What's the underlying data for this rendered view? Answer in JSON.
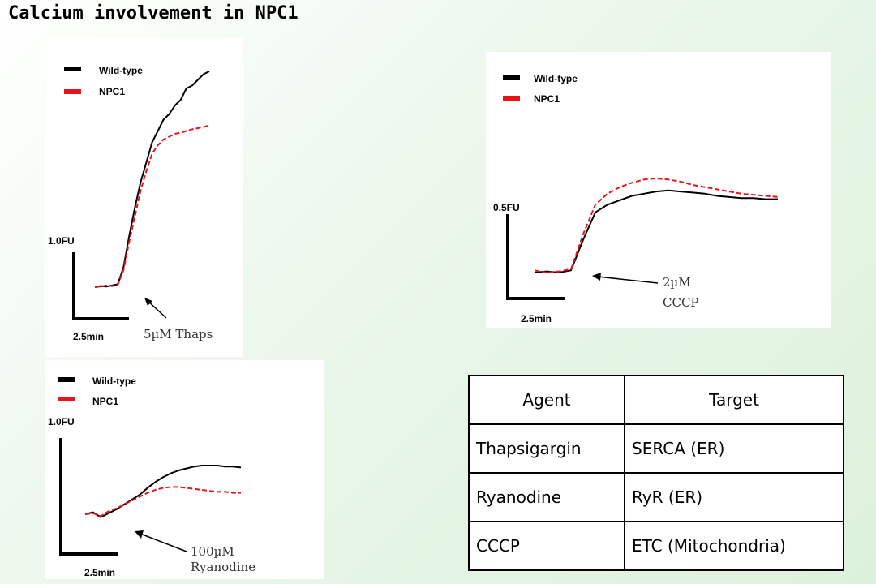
{
  "title": "Calcium involvement in NPC1",
  "colors": {
    "wild_type": "#000000",
    "npc1": "#e8141c"
  },
  "chart_data": [
    {
      "type": "line",
      "legend": {
        "position": "top-left",
        "entries": [
          "Wild-type",
          "NPC1"
        ]
      },
      "y_scale_bar": "1.0FU",
      "x_scale_bar": "2.5min",
      "annotation": [
        "5µM Thaps"
      ],
      "x": [
        0,
        1,
        2,
        3,
        4,
        5,
        6,
        7,
        8,
        9,
        10,
        11,
        12,
        13,
        14,
        15,
        16,
        17,
        18,
        19,
        20
      ],
      "series": [
        {
          "name": "Wild-type",
          "values": [
            0.0,
            0.02,
            0.01,
            0.03,
            0.05,
            0.35,
            0.9,
            1.4,
            1.85,
            2.2,
            2.55,
            2.75,
            2.95,
            3.05,
            3.2,
            3.3,
            3.5,
            3.55,
            3.65,
            3.75,
            3.8
          ]
        },
        {
          "name": "NPC1",
          "values": [
            0.0,
            0.01,
            0.03,
            0.02,
            0.04,
            0.3,
            0.8,
            1.25,
            1.7,
            2.05,
            2.35,
            2.5,
            2.6,
            2.65,
            2.7,
            2.72,
            2.75,
            2.78,
            2.8,
            2.82,
            2.85
          ]
        }
      ]
    },
    {
      "type": "line",
      "legend": {
        "position": "top-left",
        "entries": [
          "Wild-type",
          "NPC1"
        ]
      },
      "y_scale_bar": "0.5FU",
      "x_scale_bar": "2.5min",
      "annotation": [
        "2µM",
        "CCCP"
      ],
      "x": [
        0,
        1,
        2,
        3,
        4,
        5,
        6,
        7,
        8,
        9,
        10,
        11,
        12,
        13,
        14,
        15,
        16,
        17,
        18,
        19,
        20
      ],
      "series": [
        {
          "name": "Wild-type",
          "values": [
            0.0,
            0.01,
            0.0,
            0.02,
            0.3,
            0.55,
            0.62,
            0.66,
            0.7,
            0.72,
            0.74,
            0.75,
            0.74,
            0.73,
            0.72,
            0.7,
            0.69,
            0.68,
            0.68,
            0.67,
            0.67
          ]
        },
        {
          "name": "NPC1",
          "values": [
            0.02,
            0.0,
            0.01,
            0.03,
            0.35,
            0.62,
            0.72,
            0.78,
            0.82,
            0.85,
            0.86,
            0.85,
            0.83,
            0.8,
            0.78,
            0.76,
            0.74,
            0.72,
            0.71,
            0.7,
            0.69
          ]
        }
      ]
    },
    {
      "type": "line",
      "legend": {
        "position": "top-left",
        "entries": [
          "Wild-type",
          "NPC1"
        ]
      },
      "y_scale_bar": "1.0FU",
      "x_scale_bar": "2.5min",
      "annotation": [
        "100µM",
        "Ryanodine"
      ],
      "x": [
        0,
        1,
        2,
        3,
        4,
        5,
        6,
        7,
        8,
        9,
        10,
        11,
        12,
        13,
        14,
        15,
        16,
        17,
        18,
        19,
        20
      ],
      "series": [
        {
          "name": "Wild-type",
          "values": [
            0.0,
            0.02,
            -0.03,
            0.01,
            0.05,
            0.1,
            0.15,
            0.2,
            0.27,
            0.33,
            0.38,
            0.42,
            0.45,
            0.47,
            0.49,
            0.5,
            0.5,
            0.5,
            0.49,
            0.49,
            0.48
          ]
        },
        {
          "name": "NPC1",
          "values": [
            0.0,
            0.01,
            -0.02,
            0.03,
            0.06,
            0.1,
            0.14,
            0.18,
            0.22,
            0.25,
            0.27,
            0.28,
            0.28,
            0.27,
            0.26,
            0.25,
            0.24,
            0.23,
            0.23,
            0.22,
            0.22
          ]
        }
      ]
    }
  ],
  "table": {
    "headers": [
      "Agent",
      "Target"
    ],
    "rows": [
      [
        "Thapsigargin",
        "SERCA (ER)"
      ],
      [
        "Ryanodine",
        "RyR (ER)"
      ],
      [
        "CCCP",
        "ETC (Mitochondria)"
      ]
    ]
  }
}
